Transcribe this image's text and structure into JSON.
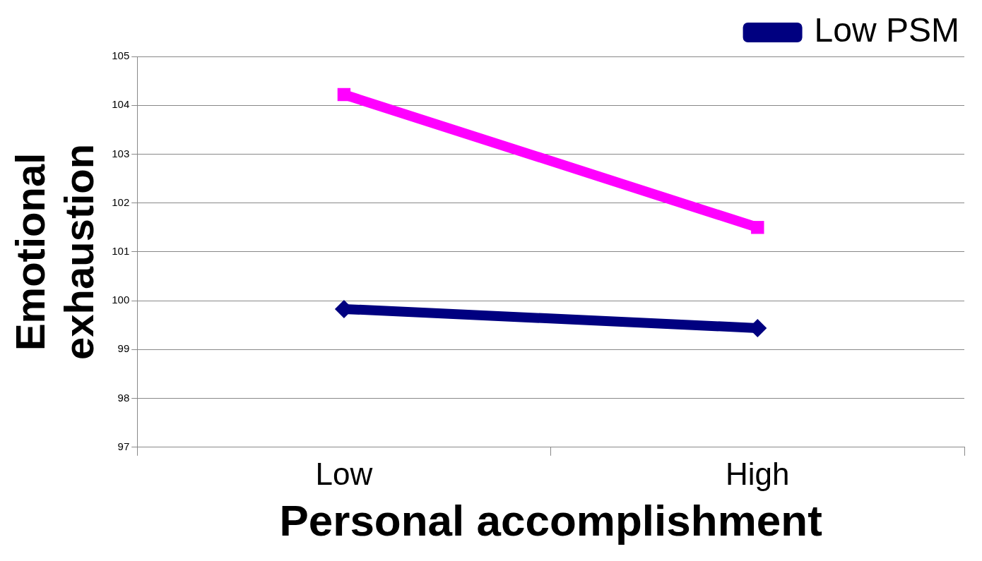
{
  "chart_data": {
    "type": "line",
    "xlabel": "Personal accomplishment",
    "ylabel": "Emotional exhaustion",
    "categories": [
      "Low",
      "High"
    ],
    "series": [
      {
        "name": "Low PSM",
        "color": "#000080",
        "values": [
          99.83,
          99.44
        ],
        "marker": "diamond"
      },
      {
        "color": "#ff00ff",
        "values": [
          104.22,
          101.5
        ],
        "marker": "square"
      }
    ],
    "ylim": [
      97,
      105
    ],
    "yticks": [
      97,
      98,
      99,
      100,
      101,
      102,
      103,
      104,
      105
    ],
    "grid": "y",
    "legend": "top right",
    "line_style": "solid"
  }
}
